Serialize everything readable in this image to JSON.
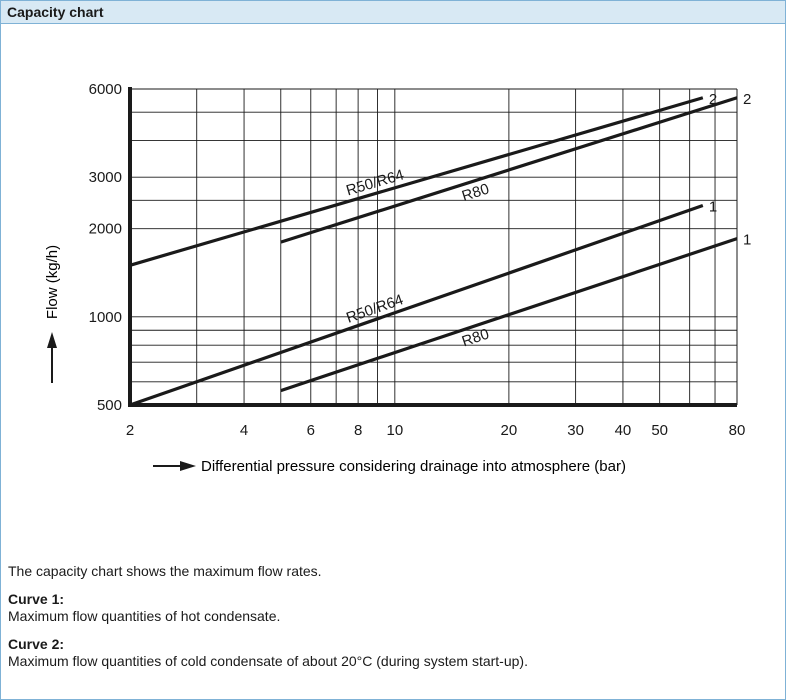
{
  "panel": {
    "title": "Capacity chart"
  },
  "chart_data": {
    "type": "line",
    "xscale": "log",
    "yscale": "log",
    "xlim": [
      2,
      80
    ],
    "ylim": [
      500,
      6000
    ],
    "xlabel": "Differential pressure considering drainage into atmosphere (bar)",
    "ylabel": "Flow (kg/h)",
    "x_ticks": [
      2,
      4,
      6,
      8,
      10,
      20,
      30,
      40,
      50,
      80
    ],
    "y_ticks": [
      500,
      1000,
      2000,
      3000,
      6000
    ],
    "series": [
      {
        "name": "R50/R64",
        "curve": "2",
        "points": [
          [
            2,
            1500
          ],
          [
            65,
            5600
          ]
        ]
      },
      {
        "name": "R80",
        "curve": "2",
        "points": [
          [
            5,
            1800
          ],
          [
            80,
            5600
          ]
        ]
      },
      {
        "name": "R50/R64",
        "curve": "1",
        "points": [
          [
            2,
            500
          ],
          [
            65,
            2400
          ]
        ]
      },
      {
        "name": "R80",
        "curve": "1",
        "points": [
          [
            5,
            560
          ],
          [
            80,
            1850
          ]
        ]
      }
    ]
  },
  "notes": {
    "intro": "The capacity chart shows the maximum flow rates.",
    "curve1_heading": "Curve 1:",
    "curve1_text": "Maximum flow quantities of hot condensate.",
    "curve2_heading": "Curve 2:",
    "curve2_text": "Maximum flow quantities of cold condensate of about 20°C (during system start-up)."
  }
}
